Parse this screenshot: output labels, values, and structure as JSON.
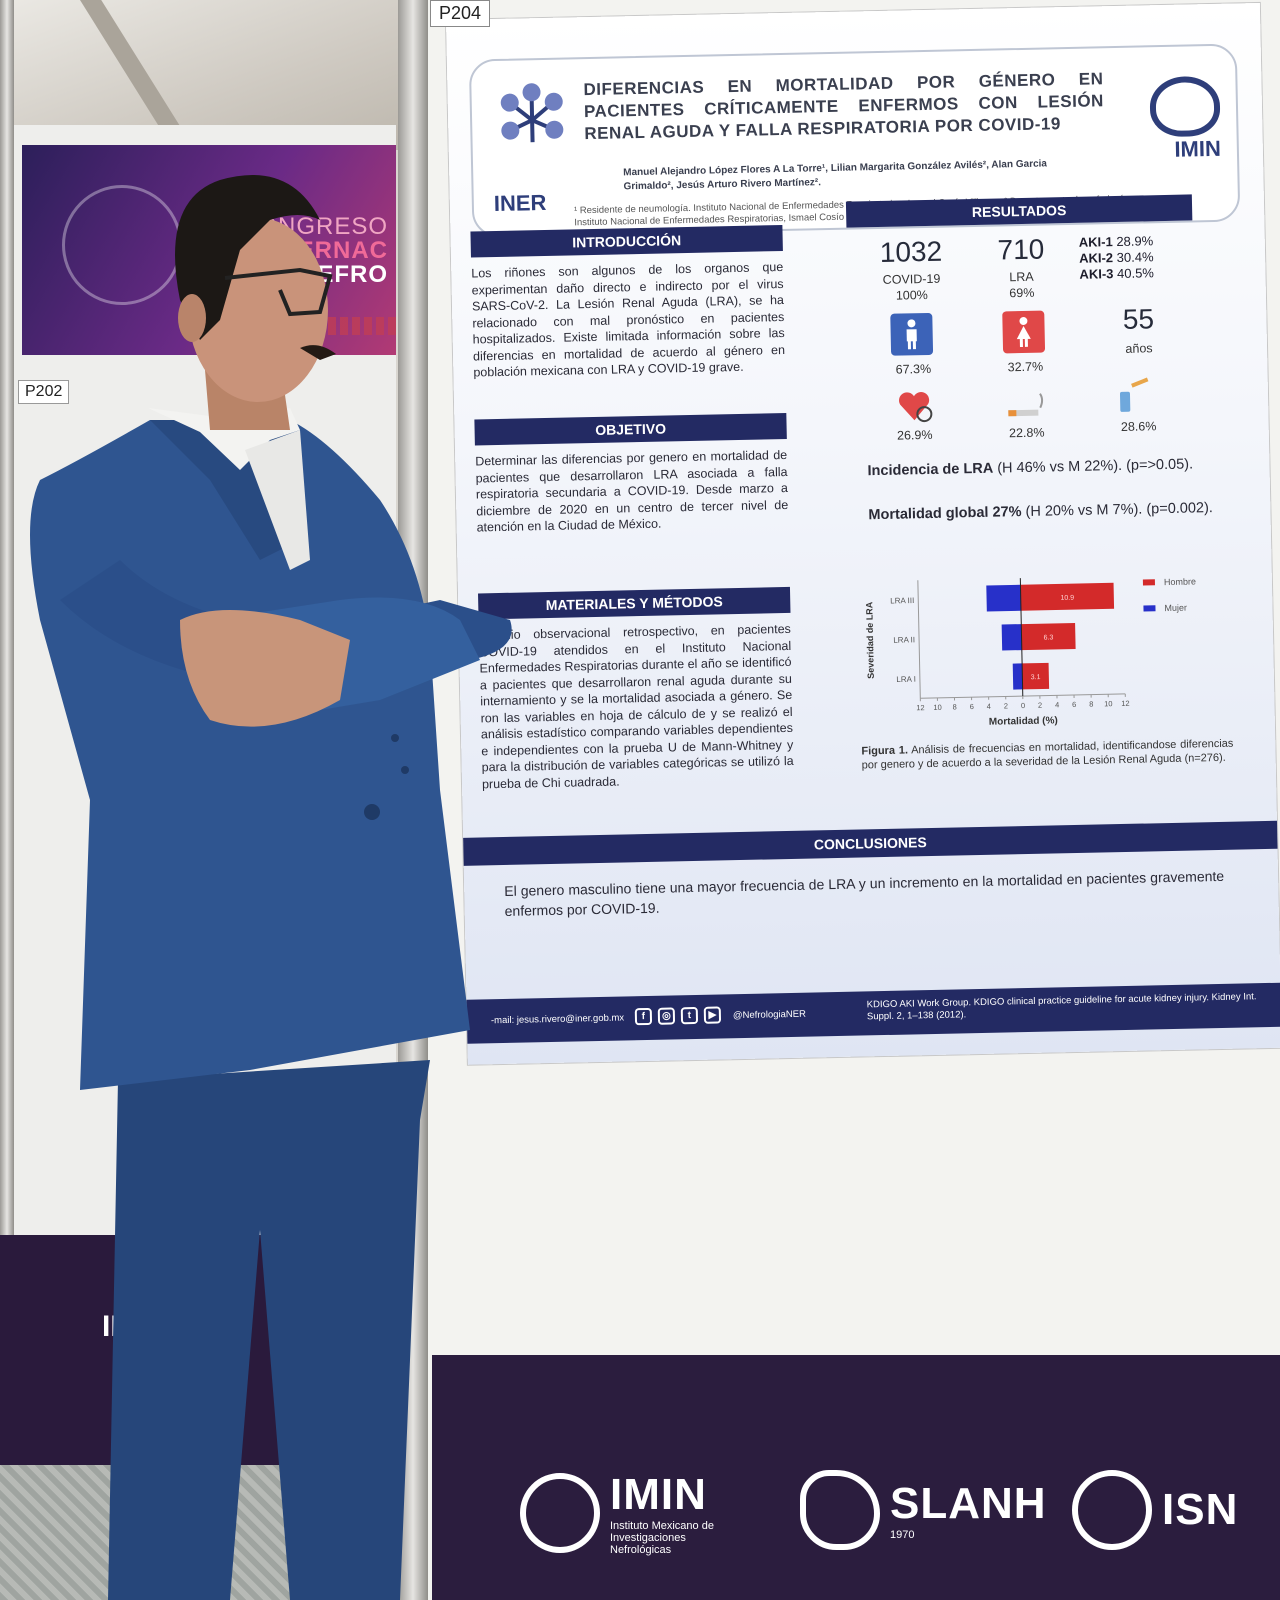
{
  "left_booth": {
    "label": "P202",
    "banner_lines": [
      "CONGRESO",
      "INTERNAC",
      "NEFRO"
    ],
    "bottom_logo": "IMIN"
  },
  "poster": {
    "number": "P204",
    "title": "DIFERENCIAS EN MORTALIDAD POR GÉNERO EN PACIENTES CRÍTICAMENTE ENFERMOS CON LESIÓN RENAL AGUDA Y FALLA RESPIRATORIA POR COVID-19",
    "authors": "Manuel Alejandro López Flores A La Torre¹, Lilian Margarita González Avilés², Alan Garcia Grimaldo², Jesús Arturo Rivero Martínez².",
    "affiliations": "¹ Residente de neumología. Instituto Nacional de Enfermedades Respiratorias, Ismael Cosío Villegas. ² Departamento de nefrología. Instituto Nacional de Enfermedades Respiratorias, Ismael Cosío Villegas. CDMX.",
    "logo_left": "INER",
    "logo_right": "IMIN",
    "introduccion": {
      "heading": "INTRODUCCIÓN",
      "text": "Los riñones son algunos de los organos que experimentan daño directo e indirecto por el virus SARS-CoV-2. La Lesión Renal Aguda (LRA), se ha relacionado con mal pronóstico en pacientes hospitalizados. Existe limitada información sobre las diferencias en mortalidad de acuerdo al género en población mexicana con LRA y COVID-19 grave."
    },
    "objetivo": {
      "heading": "OBJETIVO",
      "text": "Determinar las diferencias por genero en mortalidad de pacientes que desarrollaron LRA asociada a falla respiratoria secundaria a COVID-19. Desde marzo a diciembre de 2020 en un centro de tercer nivel de atención en la Ciudad de México."
    },
    "materiales": {
      "heading": "MATERIALES Y MÉTODOS",
      "text": "Estudio observacional retrospectivo, en pacientes COVID-19 atendidos en el Instituto Nacional Enfermedades Respiratorias durante el año se identificó a pacientes que desarrollaron renal aguda durante su internamiento y se la mortalidad asociada a género. Se ron las variables en hoja de cálculo de y se realizó el análisis estadístico comparando variables dependientes e independientes con la prueba U de Mann-Whitney y para la distribución de variables categóricas se utilizó la prueba de Chi cuadrada."
    },
    "resultados": {
      "heading": "RESULTADOS",
      "covid_count": "1032",
      "covid_label": "COVID-19",
      "covid_pct": "100%",
      "lra_count": "710",
      "lra_label": "LRA",
      "lra_pct": "69%",
      "aki": [
        {
          "label": "AKI-1",
          "value": "28.9%"
        },
        {
          "label": "AKI-2",
          "value": "30.4%"
        },
        {
          "label": "AKI-3",
          "value": "40.5%"
        }
      ],
      "male_pct": "67.3%",
      "female_pct": "32.7%",
      "age_value": "55",
      "age_unit": "años",
      "icon_pcts": [
        "26.9%",
        "22.8%",
        "28.6%"
      ],
      "incidencia_label": "Incidencia de LRA",
      "incidencia_text": "(H 46% vs M 22%). (p=>0.05).",
      "mortalidad_label": "Mortalidad global 27%",
      "mortalidad_text": "(H 20% vs M 7%). (p=0.002)."
    },
    "figure_caption_label": "Figura 1.",
    "figure_caption": "Análisis de frecuencias en mortalidad, identificandose diferencias por genero y de acuerdo a la severidad de la Lesión Renal Aguda (n=276).",
    "conclusiones": {
      "heading": "CONCLUSIONES",
      "text": "El genero masculino tiene una mayor frecuencia de LRA y un incremento en la mortalidad en pacientes gravemente enfermos por COVID-19."
    },
    "footer": {
      "email": "-mail: jesus.rivero@iner.gob.mx",
      "handle": "@NefrologiaNER",
      "reference": "KDIGO AKI Work Group. KDIGO clinical practice guideline for acute kidney injury. Kidney Int. Suppl. 2, 1–138 (2012)."
    }
  },
  "chart_data": {
    "type": "bar",
    "orientation": "horizontal",
    "categories": [
      "LRA III",
      "LRA II",
      "LRA I"
    ],
    "series": [
      {
        "name": "Hombre",
        "values": [
          10.9,
          6.3,
          3.1
        ]
      },
      {
        "name": "Mujer",
        "values": [
          4.0,
          2.3,
          1.1
        ]
      }
    ],
    "series_colors": [
      "#d32a2a",
      "#2730c9"
    ],
    "bar_labels": [
      "10.9",
      "6.3",
      "3.1"
    ],
    "xlabel": "Mortalidad (%)",
    "ylabel": "Severidad de LRA",
    "x_ticks": [
      "12",
      "10",
      "8",
      "6",
      "4",
      "2",
      "0",
      "2",
      "4",
      "6",
      "8",
      "10",
      "12"
    ],
    "xlim": [
      -12,
      12
    ],
    "legend": "top-right"
  },
  "sponsors": [
    {
      "name": "IMIN",
      "sub": "Instituto Mexicano de Investigaciones Nefrológicas"
    },
    {
      "name": "SLANH",
      "sub": "1970"
    },
    {
      "name": "ISN",
      "sub": ""
    }
  ]
}
